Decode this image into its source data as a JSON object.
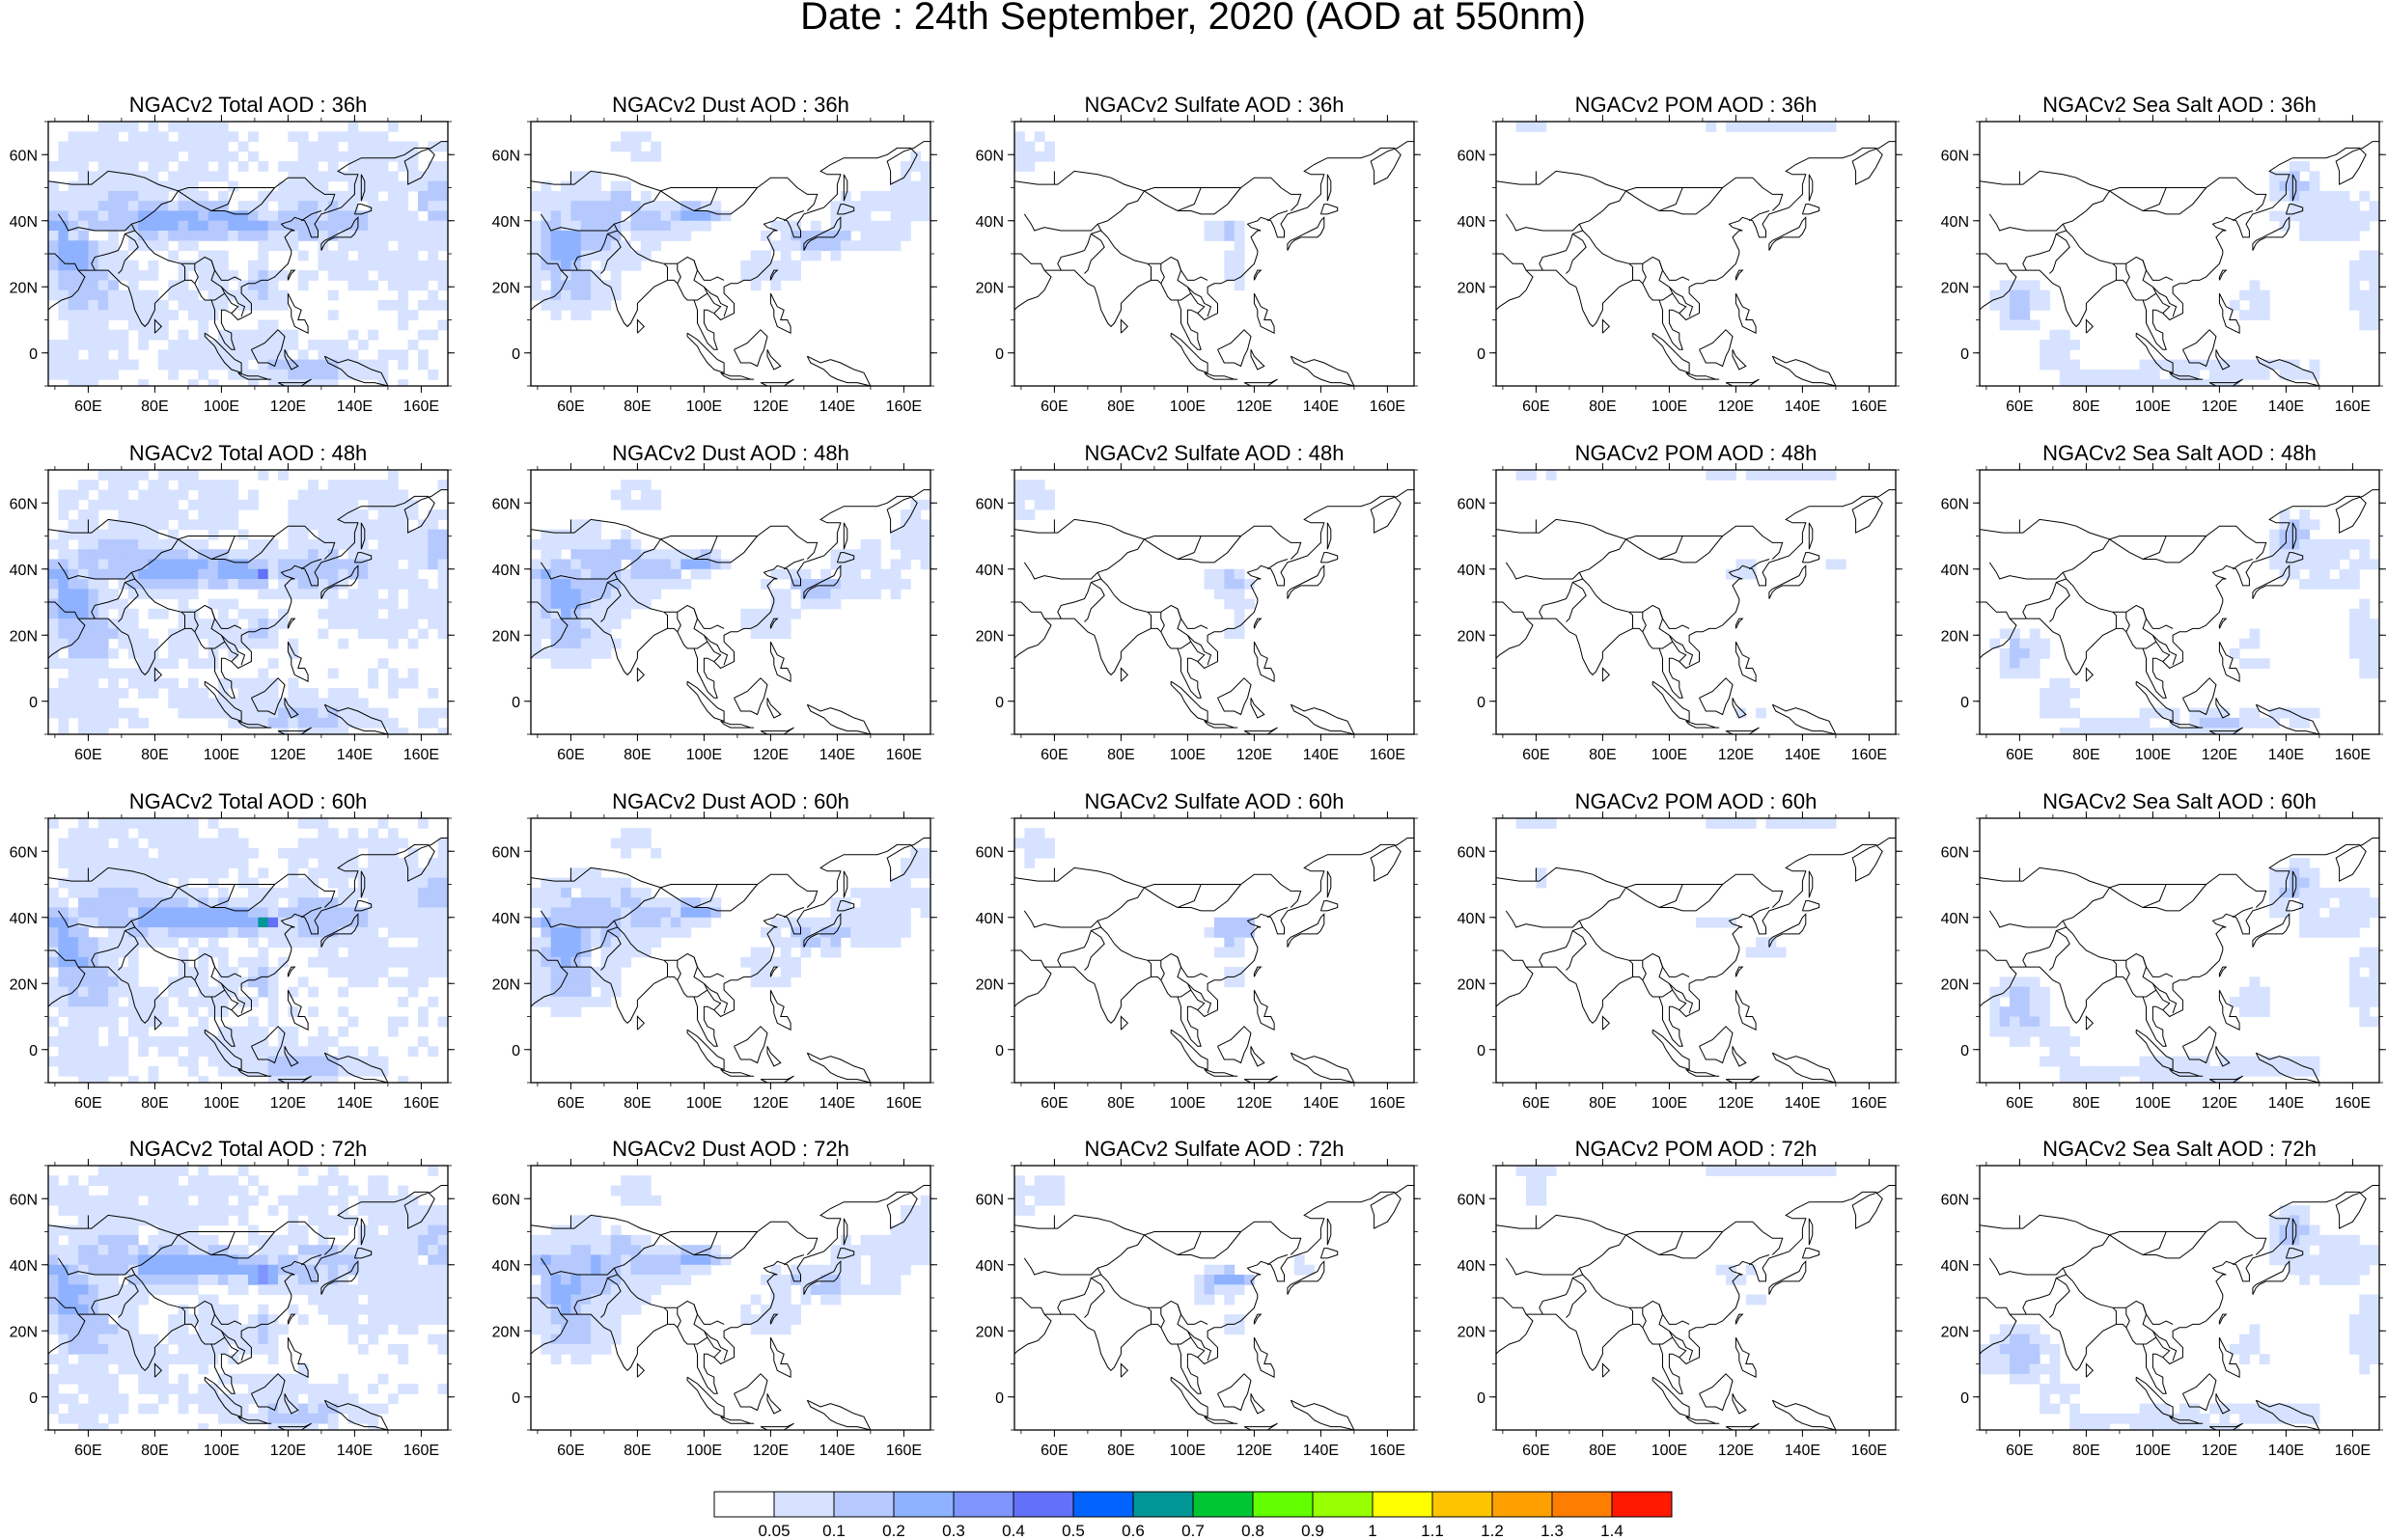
{
  "figure": {
    "title": "Date : 24th September, 2020 (AOD at 550nm)"
  },
  "map_axes": {
    "x_ticks": [
      "60E",
      "80E",
      "100E",
      "120E",
      "140E",
      "160E"
    ],
    "y_ticks": [
      "60N",
      "40N",
      "20N",
      "0"
    ],
    "lon_range": [
      48,
      168
    ],
    "lat_range": [
      -10,
      70
    ]
  },
  "colors": {
    "coastline": "#000000",
    "background": "#ffffff"
  },
  "colorbar": {
    "labels": [
      "0.05",
      "0.1",
      "0.2",
      "0.3",
      "0.4",
      "0.5",
      "0.6",
      "0.7",
      "0.8",
      "0.9",
      "1",
      "1.1",
      "1.2",
      "1.3",
      "1.4"
    ],
    "colors": [
      "#ffffff",
      "#d6e2ff",
      "#b5c9ff",
      "#8eb2ff",
      "#7f96ff",
      "#6370f8",
      "#0063ff",
      "#009696",
      "#00c633",
      "#63ff00",
      "#96ff00",
      "#ffff00",
      "#ffc400",
      "#ffa000",
      "#ff7d00",
      "#ff1900"
    ]
  },
  "panels": [
    {
      "title": "NGACv2 Total AOD : 36h",
      "species": "total",
      "lead": "36h"
    },
    {
      "title": "NGACv2 Dust AOD : 36h",
      "species": "dust",
      "lead": "36h"
    },
    {
      "title": "NGACv2 Sulfate AOD : 36h",
      "species": "sulfate",
      "lead": "36h"
    },
    {
      "title": "NGACv2 POM AOD : 36h",
      "species": "pom",
      "lead": "36h"
    },
    {
      "title": "NGACv2 Sea Salt AOD : 36h",
      "species": "seasalt",
      "lead": "36h"
    },
    {
      "title": "NGACv2 Total AOD : 48h",
      "species": "total",
      "lead": "48h"
    },
    {
      "title": "NGACv2 Dust AOD : 48h",
      "species": "dust",
      "lead": "48h"
    },
    {
      "title": "NGACv2 Sulfate AOD : 48h",
      "species": "sulfate",
      "lead": "48h"
    },
    {
      "title": "NGACv2 POM AOD : 48h",
      "species": "pom",
      "lead": "48h"
    },
    {
      "title": "NGACv2 Sea Salt AOD : 48h",
      "species": "seasalt",
      "lead": "48h"
    },
    {
      "title": "NGACv2 Total AOD : 60h",
      "species": "total",
      "lead": "60h"
    },
    {
      "title": "NGACv2 Dust AOD : 60h",
      "species": "dust",
      "lead": "60h"
    },
    {
      "title": "NGACv2 Sulfate AOD : 60h",
      "species": "sulfate",
      "lead": "60h"
    },
    {
      "title": "NGACv2 POM AOD : 60h",
      "species": "pom",
      "lead": "60h"
    },
    {
      "title": "NGACv2 Sea Salt AOD : 60h",
      "species": "seasalt",
      "lead": "60h"
    },
    {
      "title": "NGACv2 Total AOD : 72h",
      "species": "total",
      "lead": "72h"
    },
    {
      "title": "NGACv2 Dust AOD : 72h",
      "species": "dust",
      "lead": "72h"
    },
    {
      "title": "NGACv2 Sulfate AOD : 72h",
      "species": "sulfate",
      "lead": "72h"
    },
    {
      "title": "NGACv2 POM AOD : 72h",
      "species": "pom",
      "lead": "72h"
    },
    {
      "title": "NGACv2 Sea Salt  AOD : 72h",
      "species": "seasalt",
      "lead": "72h"
    }
  ]
}
